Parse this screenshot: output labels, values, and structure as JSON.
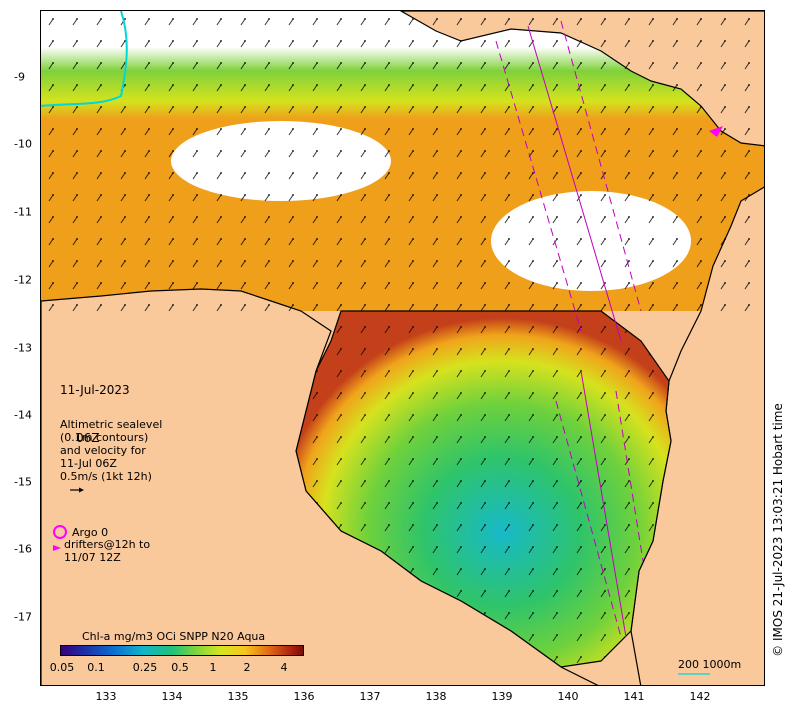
{
  "map": {
    "x_ticks": [
      "133",
      "134",
      "135",
      "136",
      "137",
      "138",
      "139",
      "140",
      "141",
      "142"
    ],
    "y_ticks": [
      "-9",
      "-10",
      "-11",
      "-12",
      "-13",
      "-14",
      "-15",
      "-16",
      "-17"
    ],
    "colors": {
      "land": "#f9c89b",
      "coast": "#000000",
      "no_data": "#ffffff",
      "argo": "#ff00ff",
      "drifter": "#ff00ff",
      "track": "#c000c0",
      "contour": "#00d8d8"
    }
  },
  "annotations": {
    "date_line1": "11-Jul-2023",
    "date_line2": "06Z",
    "altimetry_note": "Altimetric sealevel\n(0.1m contours)\nand velocity for\n11-Jul 06Z\n0.5m/s (1kt 12h)",
    "argo_label": "Argo 0",
    "drifter_label": "drifters@12h to\n11/07 12Z"
  },
  "colorbar": {
    "title": "Chl-a mg/m3 OCi SNPP N20 Aqua",
    "ticks": [
      "0.05",
      "0.1",
      "0.25",
      "0.5",
      "1",
      "2",
      "4"
    ]
  },
  "scalebar": {
    "label": "200  1000m"
  },
  "credit": "© IMOS 21-Jul-2023 13:03:21 Hobart time"
}
